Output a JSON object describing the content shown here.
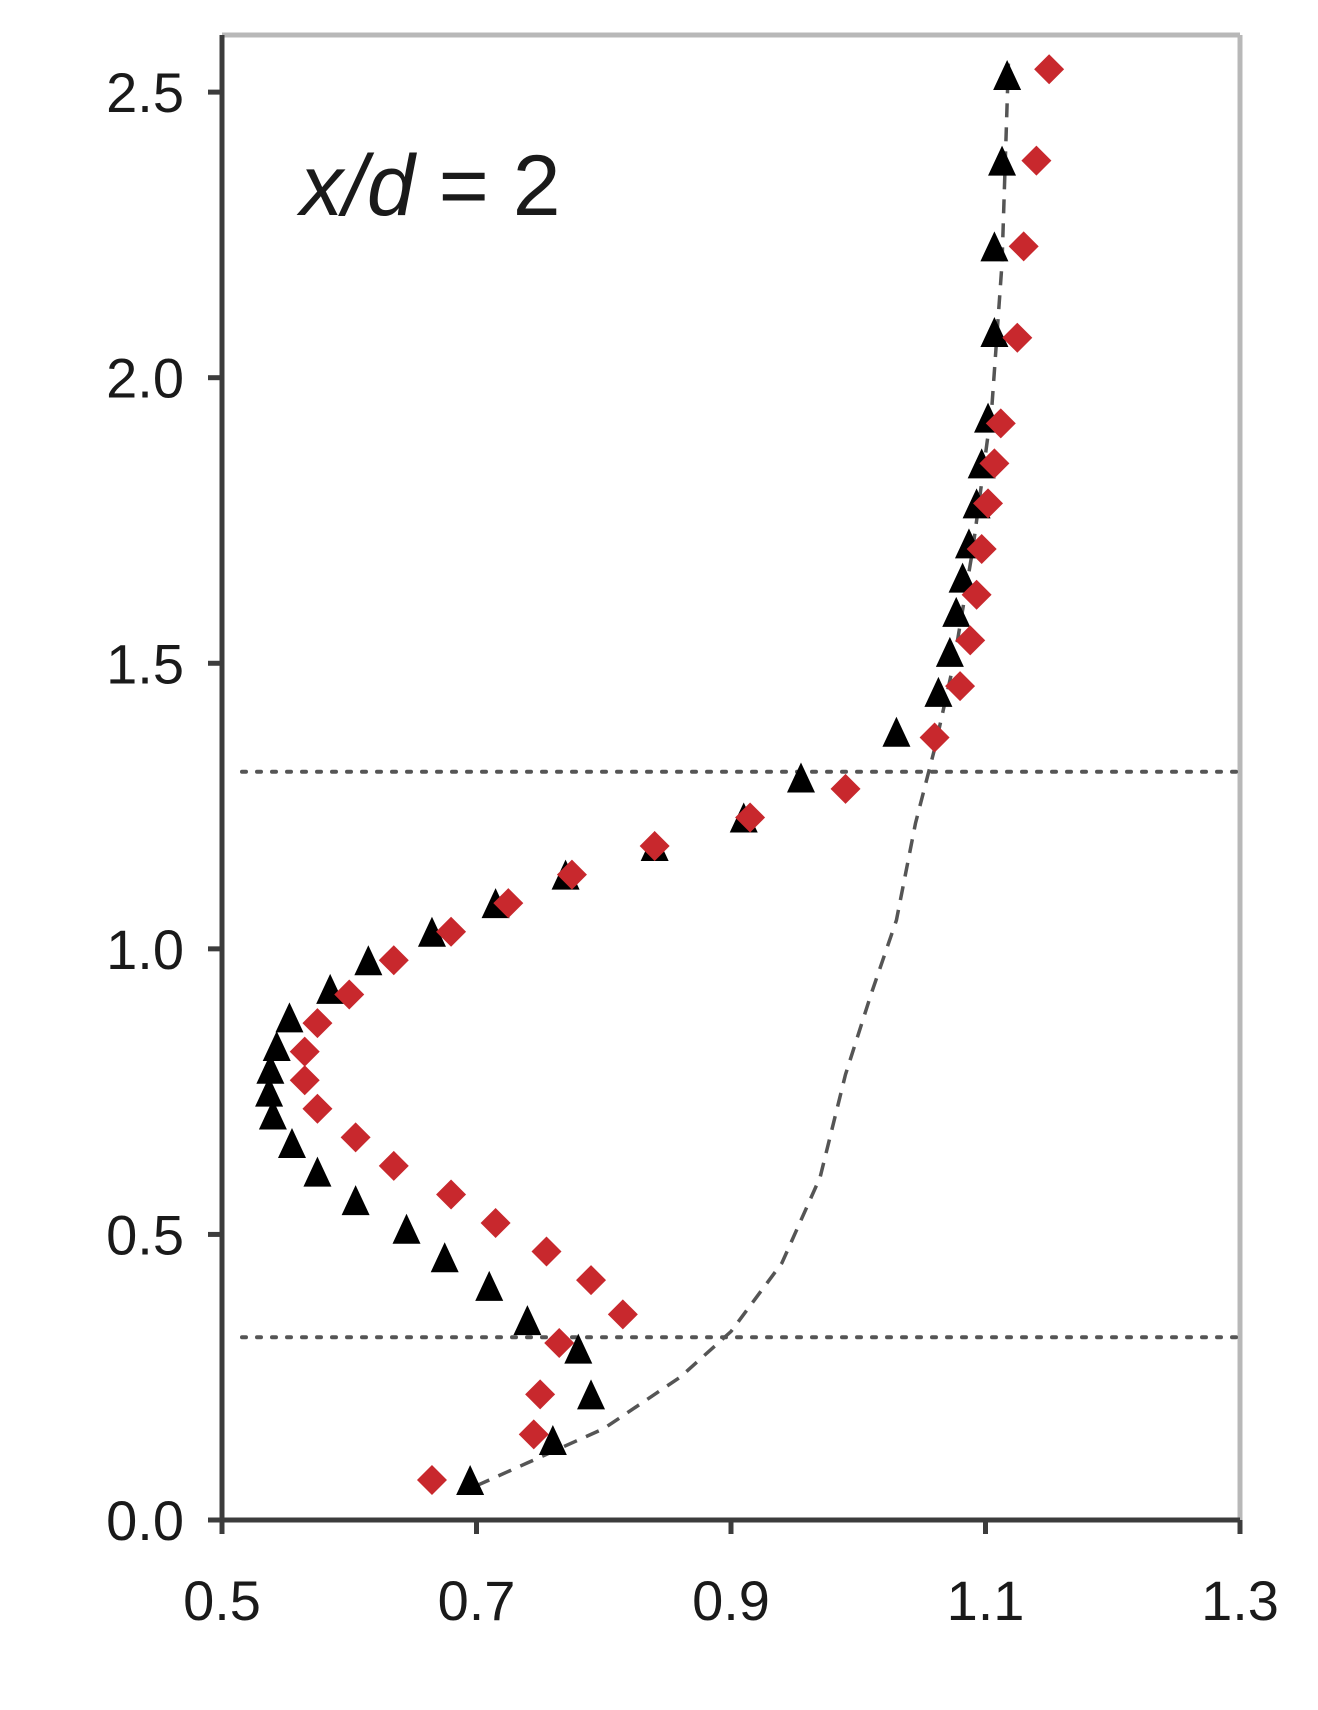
{
  "chart_data": {
    "type": "scatter",
    "title": "",
    "xlabel": "",
    "ylabel": "",
    "xlim": [
      0.5,
      1.3
    ],
    "ylim": [
      0.0,
      2.6
    ],
    "x_ticks": [
      "0.5",
      "0.7",
      "0.9",
      "1.1",
      "1.3"
    ],
    "y_ticks": [
      "0.0",
      "0.5",
      "1.0",
      "1.5",
      "2.0",
      "2.5"
    ],
    "grid": false,
    "legend": "none",
    "annotation": {
      "var": "x/d",
      "eq": " = 2"
    },
    "reference_lines_y": [
      0.32,
      1.31
    ],
    "series": [
      {
        "marker": "triangle",
        "color": "#000000",
        "points": [
          [
            0.695,
            0.07
          ],
          [
            0.76,
            0.14
          ],
          [
            0.79,
            0.22
          ],
          [
            0.78,
            0.3
          ],
          [
            0.74,
            0.35
          ],
          [
            0.71,
            0.41
          ],
          [
            0.675,
            0.46
          ],
          [
            0.645,
            0.51
          ],
          [
            0.605,
            0.56
          ],
          [
            0.575,
            0.61
          ],
          [
            0.555,
            0.66
          ],
          [
            0.54,
            0.71
          ],
          [
            0.537,
            0.75
          ],
          [
            0.538,
            0.79
          ],
          [
            0.543,
            0.83
          ],
          [
            0.553,
            0.88
          ],
          [
            0.585,
            0.93
          ],
          [
            0.615,
            0.98
          ],
          [
            0.665,
            1.03
          ],
          [
            0.715,
            1.08
          ],
          [
            0.77,
            1.13
          ],
          [
            0.84,
            1.18
          ],
          [
            0.91,
            1.23
          ],
          [
            0.955,
            1.3
          ],
          [
            1.03,
            1.38
          ],
          [
            1.063,
            1.45
          ],
          [
            1.072,
            1.52
          ],
          [
            1.077,
            1.59
          ],
          [
            1.082,
            1.65
          ],
          [
            1.087,
            1.71
          ],
          [
            1.093,
            1.78
          ],
          [
            1.097,
            1.85
          ],
          [
            1.102,
            1.93
          ],
          [
            1.107,
            2.08
          ],
          [
            1.107,
            2.23
          ],
          [
            1.113,
            2.38
          ],
          [
            1.117,
            2.53
          ]
        ]
      },
      {
        "marker": "diamond",
        "color": "#c8282d",
        "points": [
          [
            0.665,
            0.07
          ],
          [
            0.745,
            0.15
          ],
          [
            0.75,
            0.22
          ],
          [
            0.765,
            0.31
          ],
          [
            0.815,
            0.36
          ],
          [
            0.79,
            0.42
          ],
          [
            0.755,
            0.47
          ],
          [
            0.715,
            0.52
          ],
          [
            0.68,
            0.57
          ],
          [
            0.635,
            0.62
          ],
          [
            0.605,
            0.67
          ],
          [
            0.575,
            0.72
          ],
          [
            0.565,
            0.77
          ],
          [
            0.565,
            0.82
          ],
          [
            0.575,
            0.87
          ],
          [
            0.6,
            0.92
          ],
          [
            0.635,
            0.98
          ],
          [
            0.68,
            1.03
          ],
          [
            0.725,
            1.08
          ],
          [
            0.775,
            1.13
          ],
          [
            0.84,
            1.18
          ],
          [
            0.915,
            1.23
          ],
          [
            0.99,
            1.28
          ],
          [
            1.06,
            1.37
          ],
          [
            1.08,
            1.46
          ],
          [
            1.088,
            1.54
          ],
          [
            1.093,
            1.62
          ],
          [
            1.097,
            1.7
          ],
          [
            1.102,
            1.78
          ],
          [
            1.107,
            1.85
          ],
          [
            1.112,
            1.92
          ],
          [
            1.125,
            2.07
          ],
          [
            1.13,
            2.23
          ],
          [
            1.14,
            2.38
          ],
          [
            1.15,
            2.54
          ]
        ]
      },
      {
        "marker": "dashed-line",
        "color": "#555555",
        "points": [
          [
            0.7,
            0.06
          ],
          [
            0.74,
            0.1
          ],
          [
            0.8,
            0.16
          ],
          [
            0.86,
            0.25
          ],
          [
            0.9,
            0.33
          ],
          [
            0.94,
            0.45
          ],
          [
            0.97,
            0.6
          ],
          [
            0.99,
            0.78
          ],
          [
            1.01,
            0.92
          ],
          [
            1.03,
            1.05
          ],
          [
            1.045,
            1.22
          ],
          [
            1.06,
            1.35
          ],
          [
            1.075,
            1.5
          ],
          [
            1.09,
            1.7
          ],
          [
            1.105,
            1.95
          ],
          [
            1.113,
            2.2
          ],
          [
            1.118,
            2.55
          ]
        ]
      }
    ]
  }
}
